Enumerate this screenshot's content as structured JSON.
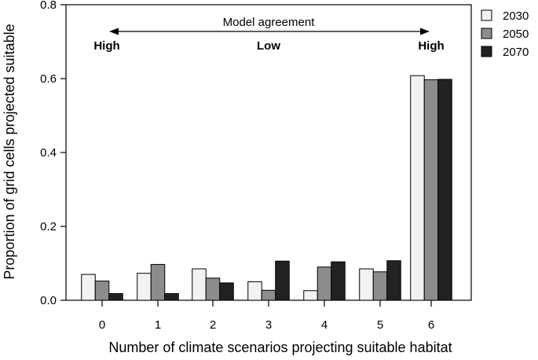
{
  "chart_data": {
    "type": "bar",
    "categories": [
      "0",
      "1",
      "2",
      "3",
      "4",
      "5",
      "6"
    ],
    "series": [
      {
        "name": "2030",
        "color": "#f2f2f2",
        "values": [
          0.07,
          0.073,
          0.085,
          0.05,
          0.026,
          0.085,
          0.608
        ]
      },
      {
        "name": "2050",
        "color": "#8c8c8c",
        "values": [
          0.052,
          0.097,
          0.06,
          0.027,
          0.09,
          0.077,
          0.597
        ]
      },
      {
        "name": "2070",
        "color": "#222222",
        "values": [
          0.018,
          0.018,
          0.047,
          0.106,
          0.104,
          0.107,
          0.598
        ]
      }
    ],
    "xlabel": "Number of climate scenarios projecting suitable habitat",
    "ylabel": "Proportion of grid cells projected suitable",
    "ylim": [
      0,
      0.8
    ],
    "yticks": [
      "0.0",
      "0.2",
      "0.4",
      "0.6",
      "0.8"
    ],
    "legend_position": "right",
    "annotation": {
      "title": "Model agreement",
      "left": "High",
      "middle": "Low",
      "right": "High"
    }
  }
}
